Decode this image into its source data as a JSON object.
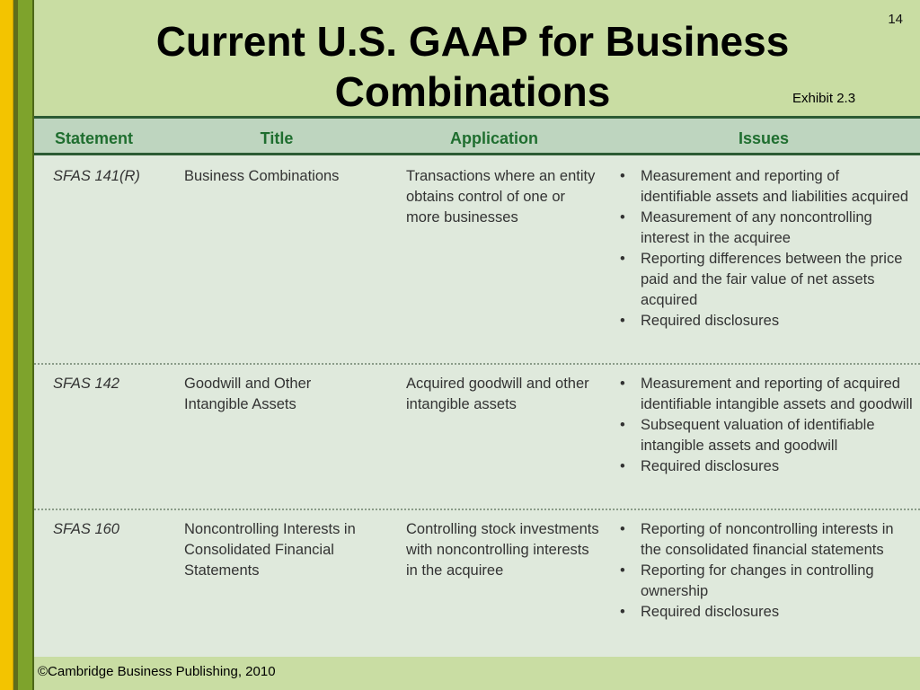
{
  "slide": {
    "number": "14",
    "title": "Current U.S. GAAP for Business Combinations",
    "exhibit_label": "Exhibit 2.3",
    "footer": "©Cambridge Business Publishing, 2010"
  },
  "table": {
    "headers": [
      "Statement",
      "Title",
      "Application",
      "Issues"
    ],
    "rows": [
      {
        "statement": "SFAS 141(R)",
        "title": "Business Combinations",
        "application": "Transactions where an entity obtains control of one or more businesses",
        "issues": [
          "Measurement and reporting of identifiable assets and liabilities acquired",
          "Measurement of any noncontrolling interest in the acquiree",
          "Reporting differences between the price paid and the fair value of net assets acquired",
          "Required disclosures"
        ]
      },
      {
        "statement": "SFAS 142",
        "title": "Goodwill and Other Intangible Assets",
        "application": "Acquired goodwill and other intangible assets",
        "issues": [
          "Measurement and reporting of acquired identifiable intangible assets and goodwill",
          "Subsequent valuation of identifiable intangible assets and goodwill",
          "Required disclosures"
        ]
      },
      {
        "statement": "SFAS 160",
        "title": "Noncontrolling Interests in Consolidated Financial Statements",
        "application": "Controlling stock investments with noncontrolling interests in the acquiree",
        "issues": [
          "Reporting of noncontrolling interests in the consolidated financial statements",
          "Reporting for changes in controlling ownership",
          "Required disclosures"
        ]
      }
    ]
  }
}
